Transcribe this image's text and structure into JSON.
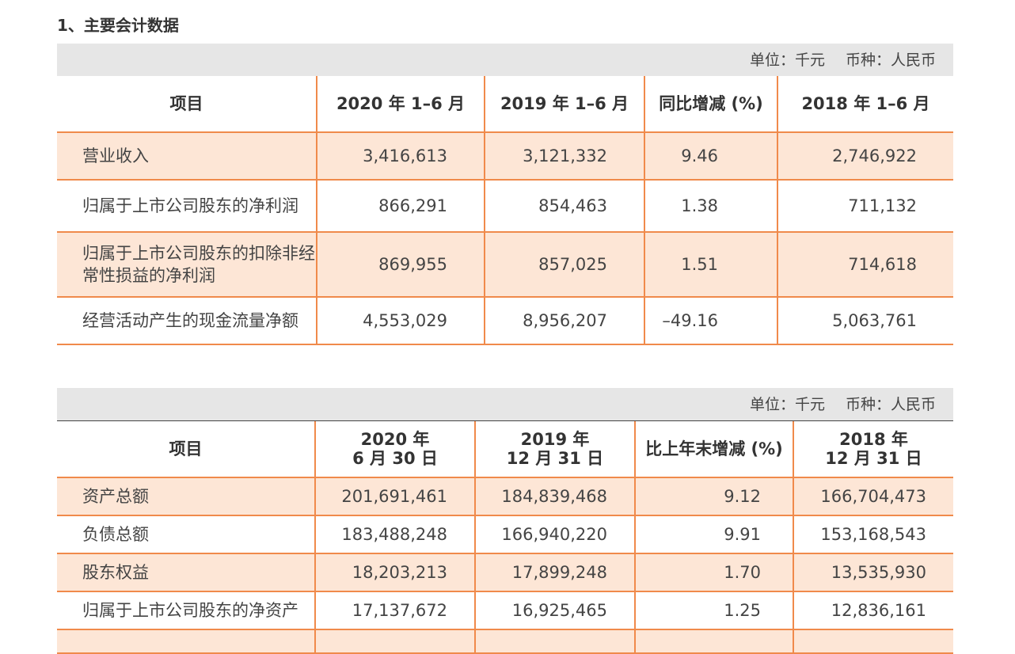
{
  "heading": "1、主要会计数据",
  "unit": {
    "unit_text": "单位：千元",
    "currency_text": "币种：人民币"
  },
  "table1": {
    "headers": [
      "项目",
      "2020 年 1–6 月",
      "2019 年 1–6 月",
      "同比增减 (%)",
      "2018 年 1–6 月"
    ],
    "rows": [
      {
        "label": "营业收入",
        "v2020": "3,416,613",
        "v2019": "3,121,332",
        "pct": "9.46",
        "v2018": "2,746,922"
      },
      {
        "label": "归属于上市公司股东的净利润",
        "v2020": "866,291",
        "v2019": "854,463",
        "pct": "1.38",
        "v2018": "711,132"
      },
      {
        "label": "归属于上市公司股东的扣除非经常性损益的净利润",
        "v2020": "869,955",
        "v2019": "857,025",
        "pct": "1.51",
        "v2018": "714,618"
      },
      {
        "label": "经营活动产生的现金流量净额",
        "v2020": "4,553,029",
        "v2019": "8,956,207",
        "pct": "–49.16",
        "v2018": "5,063,761"
      }
    ]
  },
  "table2": {
    "headers": [
      "项目",
      "2020 年 6 月 30 日",
      "2019 年 12 月 31 日",
      "比上年末增减 (%)",
      "2018 年 12 月 31 日"
    ],
    "headers_line1": [
      "项目",
      "2020 年",
      "2019 年",
      "比上年末增减 (%)",
      "2018 年"
    ],
    "headers_line2": [
      "",
      "6 月 30 日",
      "12 月 31 日",
      "",
      "12 月 31 日"
    ],
    "rows": [
      {
        "label": "资产总额",
        "v2020": "201,691,461",
        "v2019": "184,839,468",
        "pct": "9.12",
        "v2018": "166,704,473"
      },
      {
        "label": "负债总额",
        "v2020": "183,488,248",
        "v2019": "166,940,220",
        "pct": "9.91",
        "v2018": "153,168,543"
      },
      {
        "label": "股东权益",
        "v2020": "18,203,213",
        "v2019": "17,899,248",
        "pct": "1.70",
        "v2018": "13,535,930"
      },
      {
        "label": "归属于上市公司股东的净资产",
        "v2020": "17,137,672",
        "v2019": "16,925,465",
        "pct": "1.25",
        "v2018": "12,836,161"
      }
    ]
  }
}
